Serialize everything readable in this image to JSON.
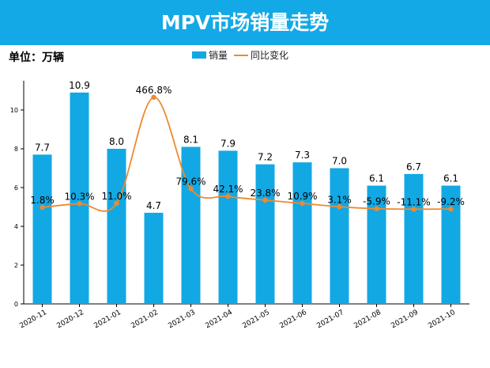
{
  "header": {
    "title": "MPV市场销量走势",
    "unit": "单位：万辆"
  },
  "colors": {
    "banner": "#13a9e6",
    "bar": "#12a8e4",
    "line": "#ee8a2e"
  },
  "chart_data": {
    "type": "bar",
    "title": "MPV市场销量走势",
    "ylabel": "单位：万辆",
    "xlabel": "",
    "ylim": [
      0,
      12
    ],
    "yticks": [
      0,
      2,
      4,
      6,
      8,
      10
    ],
    "grid": false,
    "legend": "top-center",
    "categories": [
      "2020-11",
      "2020-12",
      "2021-01",
      "2021-02",
      "2021-03",
      "2021-04",
      "2021-05",
      "2021-06",
      "2021-07",
      "2021-08",
      "2021-09",
      "2021-10"
    ],
    "series": [
      {
        "name": "销量",
        "kind": "bar",
        "values": [
          7.7,
          10.9,
          8.0,
          4.7,
          8.1,
          7.9,
          7.2,
          7.3,
          7.0,
          6.1,
          6.7,
          6.1
        ],
        "labels": [
          "7.7",
          "10.9",
          "8.0",
          "4.7",
          "8.1",
          "7.9",
          "7.2",
          "7.3",
          "7.0",
          "6.1",
          "6.7",
          "6.1"
        ]
      },
      {
        "name": "同比变化",
        "kind": "line",
        "axis": "secondary",
        "values": [
          1.8,
          10.3,
          11.0,
          466.8,
          79.6,
          42.1,
          23.8,
          10.9,
          3.1,
          -5.9,
          -11.1,
          -9.2
        ],
        "labels": [
          "1.8%",
          "10.3%",
          "11.0%",
          "466.8%",
          "79.6%",
          "42.1%",
          "23.8%",
          "10.9%",
          "3.1%",
          "-5.9%",
          "-11.1%",
          "-9.2%"
        ]
      }
    ]
  }
}
